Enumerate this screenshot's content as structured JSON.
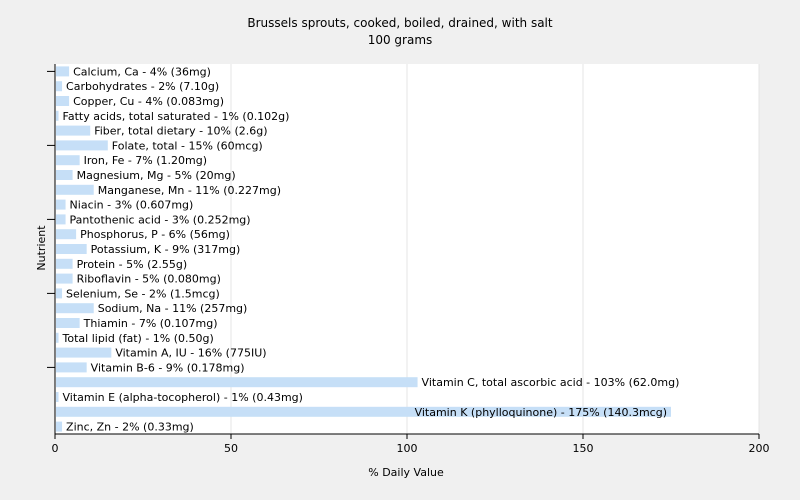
{
  "chart_data": {
    "type": "bar",
    "orientation": "horizontal",
    "title": "Brussels sprouts, cooked, boiled, drained, with salt",
    "subtitle": "100 grams",
    "xlabel": "% Daily Value",
    "ylabel": "Nutrient",
    "xlim": [
      0,
      200
    ],
    "xticks": [
      0,
      50,
      100,
      150,
      200
    ],
    "grid": true,
    "bar_color": "#c6dff7",
    "categories": [
      "Calcium, Ca - 4% (36mg)",
      "Carbohydrates - 2% (7.10g)",
      "Copper, Cu - 4% (0.083mg)",
      "Fatty acids, total saturated - 1% (0.102g)",
      "Fiber, total dietary - 10% (2.6g)",
      "Folate, total - 15% (60mcg)",
      "Iron, Fe - 7% (1.20mg)",
      "Magnesium, Mg - 5% (20mg)",
      "Manganese, Mn - 11% (0.227mg)",
      "Niacin - 3% (0.607mg)",
      "Pantothenic acid - 3% (0.252mg)",
      "Phosphorus, P - 6% (56mg)",
      "Potassium, K - 9% (317mg)",
      "Protein - 5% (2.55g)",
      "Riboflavin - 5% (0.080mg)",
      "Selenium, Se - 2% (1.5mcg)",
      "Sodium, Na - 11% (257mg)",
      "Thiamin - 7% (0.107mg)",
      "Total lipid (fat) - 1% (0.50g)",
      "Vitamin A, IU - 16% (775IU)",
      "Vitamin B-6 - 9% (0.178mg)",
      "Vitamin C, total ascorbic acid - 103% (62.0mg)",
      "Vitamin E (alpha-tocopherol) - 1% (0.43mg)",
      "Vitamin K (phylloquinone) - 175% (140.3mcg)",
      "Zinc, Zn - 2% (0.33mg)"
    ],
    "values": [
      4,
      2,
      4,
      1,
      10,
      15,
      7,
      5,
      11,
      3,
      3,
      6,
      9,
      5,
      5,
      2,
      11,
      7,
      1,
      16,
      9,
      103,
      1,
      175,
      2
    ]
  }
}
